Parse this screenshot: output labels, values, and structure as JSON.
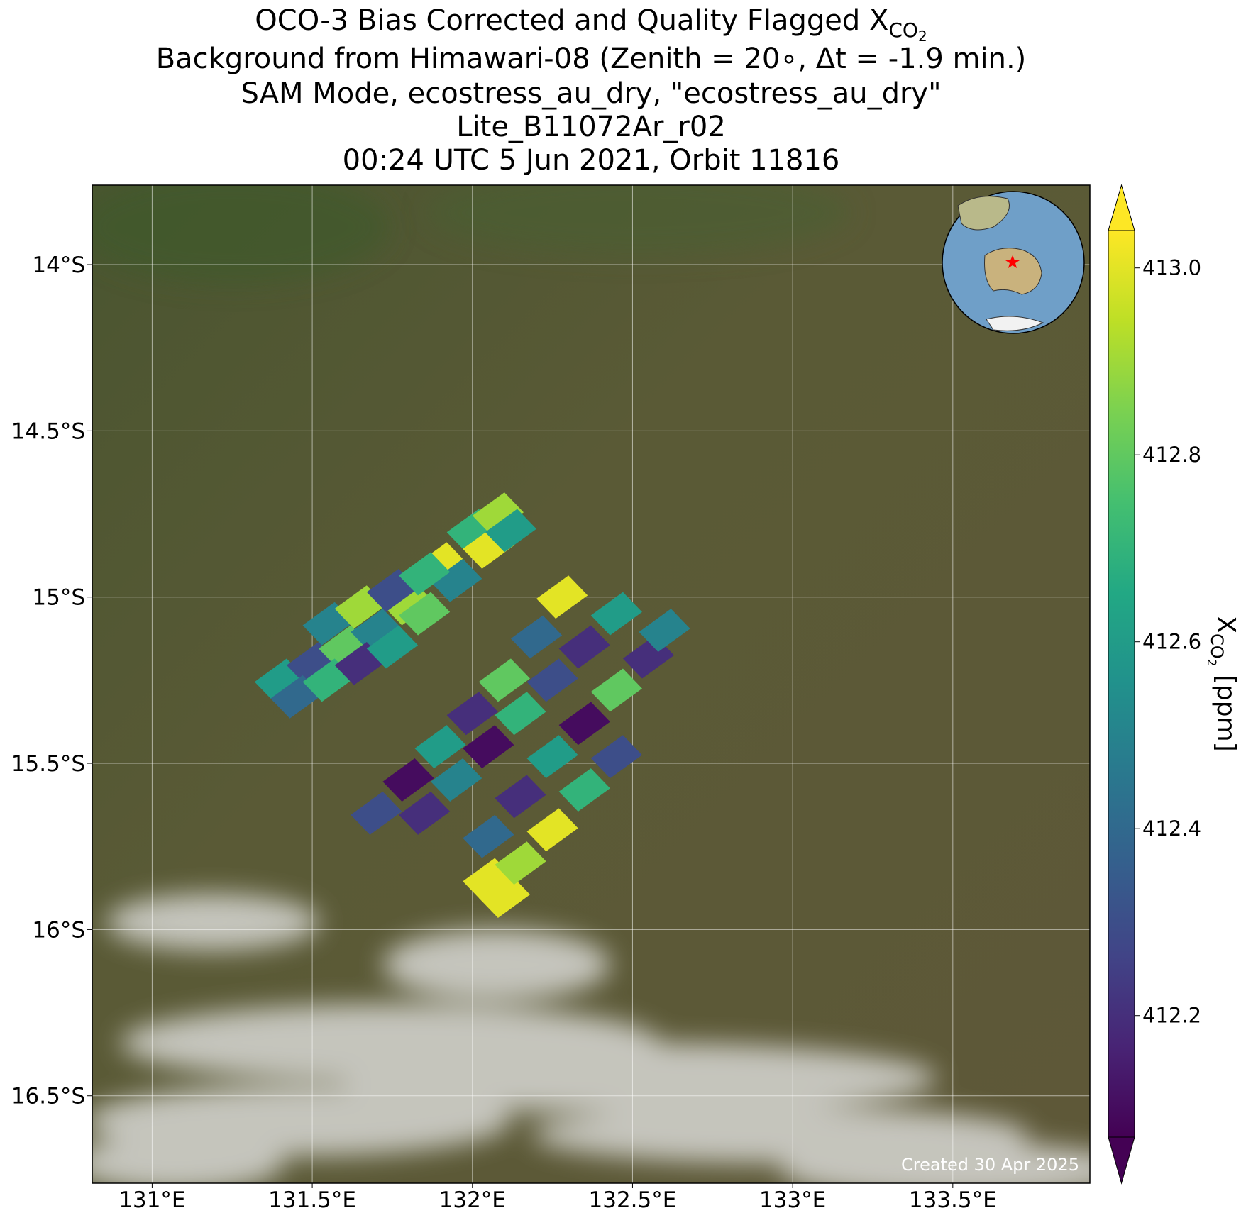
{
  "chart_data": {
    "type": "map",
    "title": {
      "line1": "OCO-3 Bias Corrected and Quality Flagged X",
      "line1_sub": "CO",
      "line1_subsub": "2",
      "lines": [
        "Background from Himawari-08 (Zenith = 20∘, Δt = -1.9 min.)",
        "SAM Mode, ecostress_au_dry, \"ecostress_au_dry\"",
        "Lite_B11072Ar_r02",
        "00:24 UTC 5 Jun 2021, Orbit 11816"
      ]
    },
    "xlim": [
      130.813,
      133.928
    ],
    "ylim": [
      -16.763,
      -13.761
    ],
    "xticks": [
      {
        "value": 131,
        "label": "131°E"
      },
      {
        "value": 131.5,
        "label": "131.5°E"
      },
      {
        "value": 132,
        "label": "132°E"
      },
      {
        "value": 132.5,
        "label": "132.5°E"
      },
      {
        "value": 133,
        "label": "133°E"
      },
      {
        "value": 133.5,
        "label": "133.5°E"
      }
    ],
    "yticks": [
      {
        "value": -14,
        "label": "14°S"
      },
      {
        "value": -14.5,
        "label": "14.5°S"
      },
      {
        "value": -15,
        "label": "15°S"
      },
      {
        "value": -15.5,
        "label": "15.5°S"
      },
      {
        "value": -16,
        "label": "16°S"
      },
      {
        "value": -16.5,
        "label": "16.5°S"
      }
    ],
    "grid": true,
    "colormap": "viridis",
    "clim": [
      412.07,
      413.04
    ],
    "cticks": [
      412.2,
      412.4,
      412.6,
      412.8,
      {
        "value": 413,
        "label": "413.0"
      }
    ],
    "colorbar_label": {
      "main": "X",
      "sub": "CO",
      "subsub": "2",
      "unit": " [ppm]"
    },
    "lon": [
      131.4,
      131.5,
      131.6,
      131.7,
      131.8,
      131.9,
      132.0,
      132.08,
      131.45,
      131.55,
      131.65,
      131.75,
      131.85,
      131.95,
      132.05,
      132.12,
      131.55,
      131.65,
      131.75,
      131.85,
      131.7,
      131.8,
      131.9,
      132.0,
      132.1,
      132.2,
      132.28,
      131.85,
      131.95,
      132.05,
      132.15,
      132.25,
      132.35,
      132.45,
      132.05,
      132.15,
      132.25,
      132.35,
      132.45,
      132.55,
      132.6,
      132.05,
      132.1,
      132.15,
      132.25,
      132.35,
      132.45
    ],
    "lat": [
      -15.25,
      -15.2,
      -15.15,
      -15.1,
      -15.02,
      -14.9,
      -14.8,
      -14.75,
      -15.3,
      -15.25,
      -15.2,
      -15.15,
      -15.05,
      -14.95,
      -14.85,
      -14.8,
      -15.08,
      -15.03,
      -14.98,
      -14.93,
      -15.65,
      -15.55,
      -15.45,
      -15.35,
      -15.25,
      -15.12,
      -15.0,
      -15.65,
      -15.55,
      -15.45,
      -15.35,
      -15.25,
      -15.15,
      -15.05,
      -15.72,
      -15.6,
      -15.48,
      -15.38,
      -15.28,
      -15.18,
      -15.1,
      -15.85,
      -15.9,
      -15.8,
      -15.7,
      -15.58,
      -15.48
    ],
    "values": [
      412.6,
      412.3,
      412.8,
      412.5,
      412.9,
      413.0,
      412.7,
      412.9,
      412.4,
      412.7,
      412.2,
      412.6,
      412.8,
      412.5,
      413.0,
      412.6,
      412.5,
      412.9,
      412.3,
      412.7,
      412.3,
      412.1,
      412.6,
      412.2,
      412.8,
      412.4,
      413.0,
      412.2,
      412.5,
      412.1,
      412.7,
      412.3,
      412.2,
      412.6,
      412.4,
      412.2,
      412.6,
      412.1,
      412.8,
      412.2,
      412.5,
      413.0,
      413.0,
      412.9,
      413.0,
      412.7,
      412.3
    ],
    "note": "Created 30 Apr 2025"
  }
}
